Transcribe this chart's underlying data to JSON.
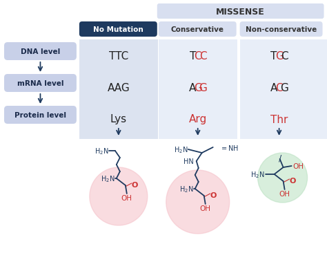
{
  "bg_color": "#ffffff",
  "title_missense": "MISSENSE",
  "col_headers": [
    "No Mutation",
    "Conservative",
    "Non-conservative"
  ],
  "row_labels": [
    "DNA level",
    "mRNA level",
    "Protein level"
  ],
  "dna_row": [
    "TTC",
    "TCC",
    "TGC"
  ],
  "mrna_row": [
    "AAG",
    "AGG",
    "ACG"
  ],
  "protein_row": [
    "Lys",
    "Arg",
    "Thr"
  ],
  "col0_bg": "#dce3f0",
  "col12_bg": "#e8eef8",
  "header_no_mutation_bg": "#1e3a5f",
  "header_no_mutation_fg": "#ffffff",
  "header_missense_bg": "#d8dff0",
  "header_sub_bg": "#d8dff0",
  "flowbox_bg": "#c8d0e8",
  "flowbox_fg": "#1a2a4a",
  "red_color": "#cc3333",
  "dark_blue": "#1e3a5f",
  "arrow_color": "#1e3a5f",
  "circle_pink": "#f5c0c8",
  "circle_green": "#b8e0c0"
}
